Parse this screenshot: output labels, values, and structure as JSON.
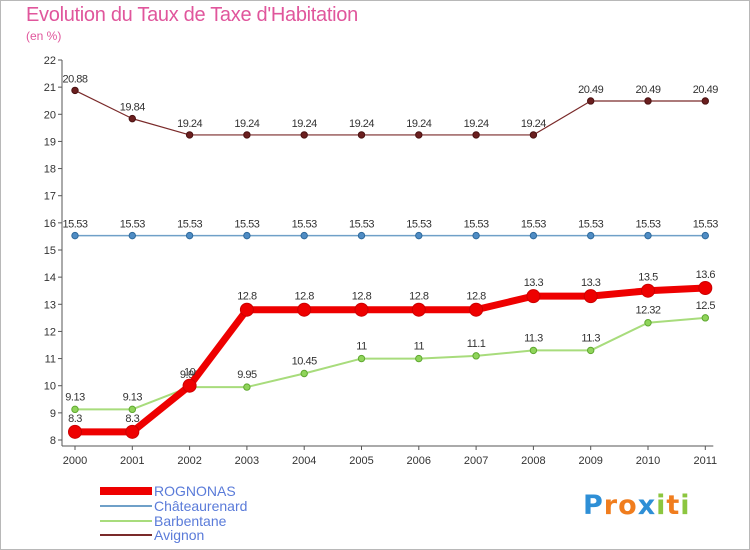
{
  "header": {
    "title": "Evolution du Taux de Taxe d'Habitation",
    "subtitle": "(en %)"
  },
  "chart_data": {
    "type": "line",
    "title": "Evolution du Taux de Taxe d'Habitation",
    "ylabel": "(en %)",
    "xlabel": "",
    "x": [
      "2000",
      "2001",
      "2002",
      "2003",
      "2004",
      "2005",
      "2006",
      "2007",
      "2008",
      "2009",
      "2010",
      "2011"
    ],
    "ylim": [
      8,
      22
    ],
    "yticks": [
      "8",
      "9",
      "10",
      "11",
      "12",
      "13",
      "14",
      "15",
      "16",
      "17",
      "18",
      "19",
      "20",
      "21",
      "22"
    ],
    "grid": false,
    "legend_position": "bottom-left",
    "series": [
      {
        "name": "Avignon",
        "color": "#7a2a2a",
        "values": [
          20.88,
          19.84,
          19.24,
          19.24,
          19.24,
          19.24,
          19.24,
          19.24,
          19.24,
          20.49,
          20.49,
          20.49
        ],
        "labels": [
          "20.88",
          "19.84",
          "19.24",
          "19.24",
          "19.24",
          "19.24",
          "19.24",
          "19.24",
          "19.24",
          "20.49",
          "20.49",
          "20.49"
        ]
      },
      {
        "name": "Châteaurenard",
        "color": "#6fa0c8",
        "values": [
          15.53,
          15.53,
          15.53,
          15.53,
          15.53,
          15.53,
          15.53,
          15.53,
          15.53,
          15.53,
          15.53,
          15.53
        ],
        "labels": [
          "15.53",
          "15.53",
          "15.53",
          "15.53",
          "15.53",
          "15.53",
          "15.53",
          "15.53",
          "15.53",
          "15.53",
          "15.53",
          "15.53"
        ]
      },
      {
        "name": "Barbentane",
        "color": "#a8dc7c",
        "values": [
          9.13,
          9.13,
          9.95,
          9.95,
          10.45,
          11,
          11,
          11.1,
          11.3,
          11.3,
          12.32,
          12.5
        ],
        "labels": [
          "9.13",
          "9.13",
          "9.95",
          "9.95",
          "10.45",
          "11",
          "11",
          "11.1",
          "11.3",
          "11.3",
          "12.32",
          "12.5"
        ]
      },
      {
        "name": "ROGNONAS",
        "color": "#ee0000",
        "values": [
          8.3,
          8.3,
          10,
          12.8,
          12.8,
          12.8,
          12.8,
          12.8,
          13.3,
          13.3,
          13.5,
          13.6
        ],
        "labels": [
          "8.3",
          "8.3",
          "10",
          "12.8",
          "12.8",
          "12.8",
          "12.8",
          "12.8",
          "13.3",
          "13.3",
          "13.5",
          "13.6"
        ]
      }
    ]
  },
  "legend": {
    "items": [
      {
        "label": "ROGNONAS",
        "color": "#ee0000"
      },
      {
        "label": "Châteaurenard",
        "color": "#6fa0c8"
      },
      {
        "label": "Barbentane",
        "color": "#a8dc7c"
      },
      {
        "label": "Avignon",
        "color": "#7a2a2a"
      }
    ]
  },
  "logo": {
    "letters": [
      "P",
      "r",
      "o",
      "x",
      "i",
      "t",
      "i"
    ],
    "colors": [
      "#2e8fd6",
      "#f07d1e",
      "#f07d1e",
      "#2e8fd6",
      "#8cc63f",
      "#f07d1e",
      "#8cc63f"
    ]
  }
}
